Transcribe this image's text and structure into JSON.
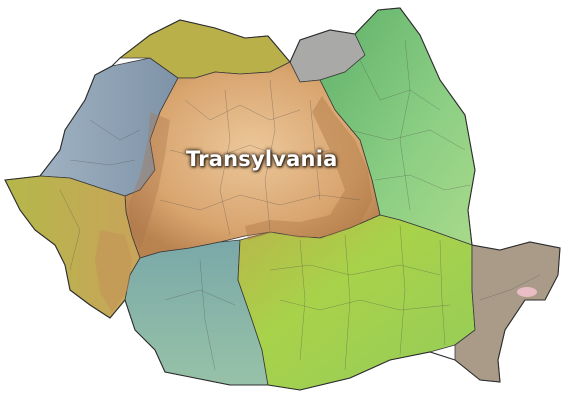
{
  "map": {
    "label": "Transylvania",
    "colors": {
      "transylvania": "#d9a46e",
      "crisana": "#8fa3b8",
      "maramures": "#b8b24a",
      "bucovina": "#a9a7a6",
      "moldavia": "#7cc07a",
      "banat": "#aeb44a",
      "oltenia": "#86b6ac",
      "muntenia": "#a8d24a",
      "dobruja": "#a89a86",
      "carpathians": "#b98a5a"
    }
  }
}
